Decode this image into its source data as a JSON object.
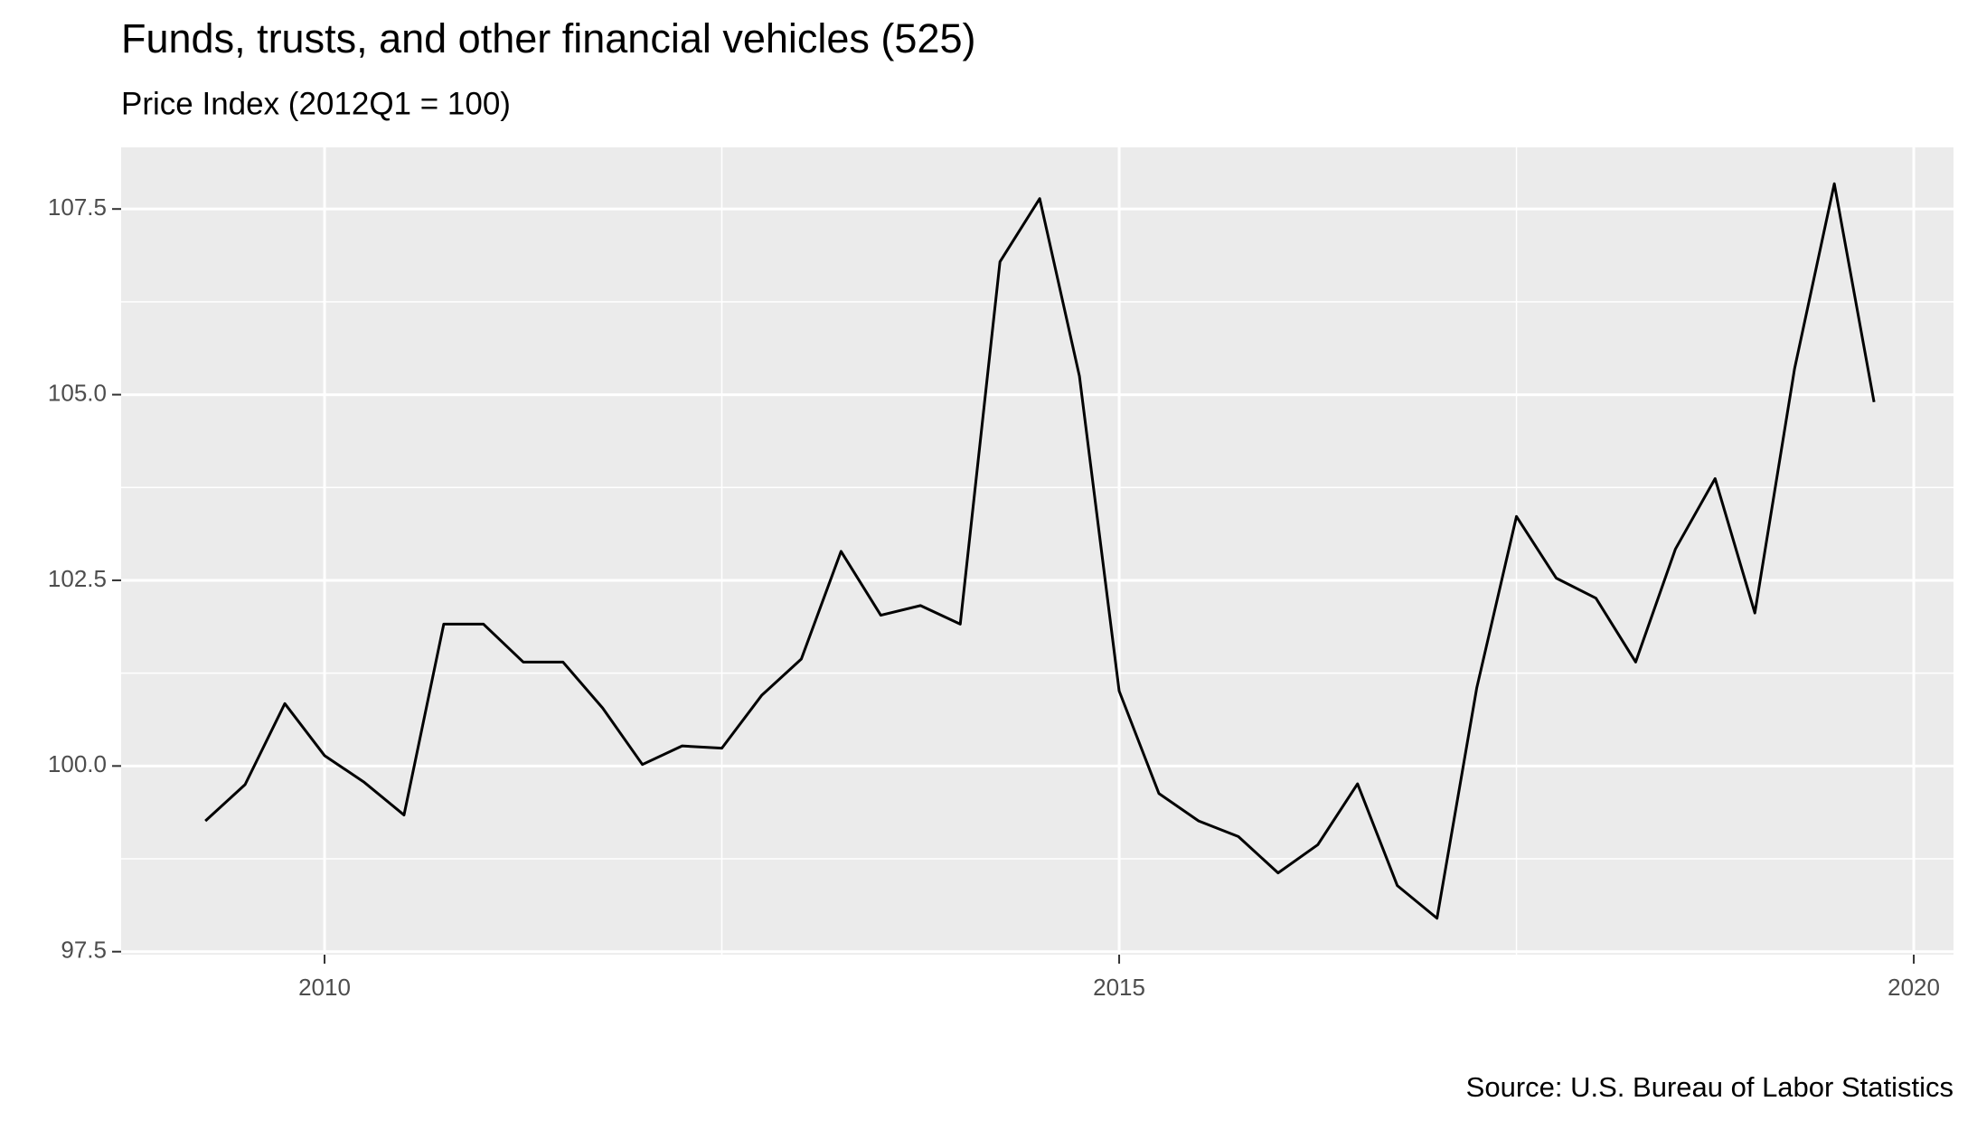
{
  "chart_data": {
    "type": "line",
    "title": "Funds, trusts, and other financial vehicles (525)",
    "subtitle": "Price Index (2012Q1 = 100)",
    "caption": "Source: U.S. Bureau of Labor Statistics",
    "x": [
      2009.25,
      2009.5,
      2009.75,
      2010,
      2010.25,
      2010.5,
      2010.75,
      2011,
      2011.25,
      2011.5,
      2011.75,
      2012,
      2012.25,
      2012.5,
      2012.75,
      2013,
      2013.25,
      2013.5,
      2013.75,
      2014,
      2014.25,
      2014.5,
      2014.75,
      2015,
      2015.25,
      2015.5,
      2015.75,
      2016,
      2016.25,
      2016.5,
      2016.75,
      2017,
      2017.25,
      2017.5,
      2017.75,
      2018,
      2018.25,
      2018.5,
      2018.75,
      2019,
      2019.25,
      2019.5,
      2019.75
    ],
    "values": [
      99.26,
      99.75,
      100.84,
      100.14,
      99.78,
      99.34,
      101.91,
      101.91,
      101.4,
      101.4,
      100.78,
      100.02,
      100.27,
      100.24,
      100.95,
      101.44,
      102.89,
      102.03,
      102.16,
      101.91,
      106.79,
      107.64,
      105.25,
      101.01,
      99.63,
      99.26,
      99.05,
      98.56,
      98.94,
      99.76,
      98.39,
      97.95,
      101.05,
      103.36,
      102.53,
      102.26,
      101.4,
      102.92,
      103.87,
      102.06,
      105.35,
      107.84,
      104.9
    ],
    "color": "#000000",
    "xlim": [
      2008.72,
      2020.25
    ],
    "xticks": [
      2010,
      2015,
      2020
    ],
    "ylim": [
      97.46,
      108.33
    ],
    "yticks": [
      97.5,
      {
        "value": 100,
        "label": "100.0"
      },
      102.5,
      {
        "value": 105,
        "label": "105.0"
      },
      107.5
    ],
    "grid": true
  }
}
